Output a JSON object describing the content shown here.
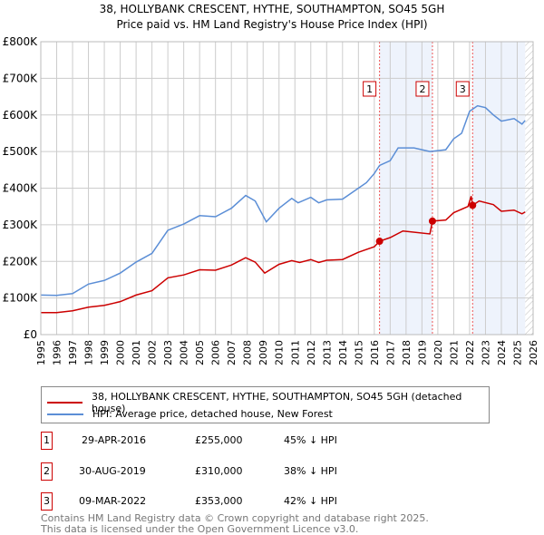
{
  "title": "38, HOLLYBANK CRESCENT, HYTHE, SOUTHAMPTON, SO45 5GH",
  "subtitle": "Price paid vs. HM Land Registry's House Price Index (HPI)",
  "chart_data": {
    "type": "line",
    "title": "38, HOLLYBANK CRESCENT, HYTHE, SOUTHAMPTON, SO45 5GH",
    "subtitle": "Price paid vs. HM Land Registry's House Price Index (HPI)",
    "xlim": [
      1995,
      2026
    ],
    "ylim": [
      0,
      800000
    ],
    "yticks": [
      {
        "v": 0,
        "l": "£0"
      },
      {
        "v": 100000,
        "l": "£100K"
      },
      {
        "v": 200000,
        "l": "£200K"
      },
      {
        "v": 300000,
        "l": "£300K"
      },
      {
        "v": 400000,
        "l": "£400K"
      },
      {
        "v": 500000,
        "l": "£500K"
      },
      {
        "v": 600000,
        "l": "£600K"
      },
      {
        "v": 700000,
        "l": "£700K"
      },
      {
        "v": 800000,
        "l": "£800K"
      }
    ],
    "xticks": [
      "1995",
      "1996",
      "1997",
      "1998",
      "1999",
      "2000",
      "2001",
      "2002",
      "2003",
      "2004",
      "2005",
      "2006",
      "2007",
      "2008",
      "2009",
      "2010",
      "2011",
      "2012",
      "2013",
      "2014",
      "2015",
      "2016",
      "2017",
      "2018",
      "2019",
      "2020",
      "2021",
      "2022",
      "2023",
      "2024",
      "2025",
      "2026"
    ],
    "grid": true,
    "series": [
      {
        "name": "38, HOLLYBANK CRESCENT, HYTHE, SOUTHAMPTON, SO45 5GH (detached house)",
        "color": "#cc0000",
        "points": [
          [
            1995,
            60000
          ],
          [
            1996,
            60000
          ],
          [
            1997,
            65000
          ],
          [
            1998,
            75000
          ],
          [
            1999,
            80000
          ],
          [
            2000,
            90000
          ],
          [
            2001,
            108000
          ],
          [
            2002,
            120000
          ],
          [
            2003,
            155000
          ],
          [
            2004,
            163000
          ],
          [
            2005,
            177000
          ],
          [
            2006,
            176000
          ],
          [
            2007,
            190000
          ],
          [
            2007.9,
            210000
          ],
          [
            2008.5,
            198000
          ],
          [
            2009.1,
            168000
          ],
          [
            2010,
            192000
          ],
          [
            2010.8,
            202000
          ],
          [
            2011.3,
            197000
          ],
          [
            2012,
            205000
          ],
          [
            2012.5,
            197000
          ],
          [
            2013,
            203000
          ],
          [
            2014,
            205000
          ],
          [
            2015,
            225000
          ],
          [
            2016,
            240000
          ],
          [
            2016.33,
            255000
          ],
          [
            2017,
            265000
          ],
          [
            2017.8,
            283000
          ],
          [
            2019.5,
            275000
          ],
          [
            2019.66,
            310000
          ],
          [
            2020.5,
            313000
          ],
          [
            2021,
            333000
          ],
          [
            2021.9,
            350000
          ],
          [
            2022.1,
            378000
          ],
          [
            2022.19,
            353000
          ],
          [
            2022.6,
            365000
          ],
          [
            2023.5,
            355000
          ],
          [
            2024,
            337000
          ],
          [
            2024.8,
            340000
          ],
          [
            2025.3,
            330000
          ],
          [
            2025.5,
            335000
          ]
        ]
      },
      {
        "name": "HPI: Average price, detached house, New Forest",
        "color": "#5b8ed6",
        "points": [
          [
            1995,
            108000
          ],
          [
            1996,
            107000
          ],
          [
            1997,
            112000
          ],
          [
            1998,
            138000
          ],
          [
            1999,
            148000
          ],
          [
            2000,
            168000
          ],
          [
            2001,
            198000
          ],
          [
            2002,
            222000
          ],
          [
            2003,
            285000
          ],
          [
            2004,
            302000
          ],
          [
            2005,
            325000
          ],
          [
            2006,
            322000
          ],
          [
            2007,
            345000
          ],
          [
            2007.9,
            380000
          ],
          [
            2008.5,
            365000
          ],
          [
            2009.2,
            308000
          ],
          [
            2010,
            345000
          ],
          [
            2010.8,
            372000
          ],
          [
            2011.2,
            360000
          ],
          [
            2012,
            375000
          ],
          [
            2012.5,
            360000
          ],
          [
            2013,
            368000
          ],
          [
            2014,
            370000
          ],
          [
            2015,
            400000
          ],
          [
            2015.5,
            415000
          ],
          [
            2016,
            440000
          ],
          [
            2016.33,
            462000
          ],
          [
            2017,
            475000
          ],
          [
            2017.5,
            510000
          ],
          [
            2018.5,
            510000
          ],
          [
            2019.5,
            500000
          ],
          [
            2020.5,
            505000
          ],
          [
            2021,
            535000
          ],
          [
            2021.5,
            550000
          ],
          [
            2022,
            610000
          ],
          [
            2022.5,
            625000
          ],
          [
            2023,
            620000
          ],
          [
            2023.5,
            600000
          ],
          [
            2024,
            583000
          ],
          [
            2024.8,
            590000
          ],
          [
            2025.3,
            575000
          ],
          [
            2025.5,
            585000
          ]
        ]
      }
    ],
    "sales": [
      {
        "n": "1",
        "x": 2016.33,
        "y": 255000
      },
      {
        "n": "2",
        "x": 2019.66,
        "y": 310000
      },
      {
        "n": "3",
        "x": 2022.19,
        "y": 353000
      }
    ],
    "shaded": [
      [
        2016.33,
        2019.66
      ],
      [
        2022.19,
        2025.5
      ]
    ],
    "hatch_from": 2025.5,
    "legend_placement": "bottom"
  },
  "legend": [
    "38, HOLLYBANK CRESCENT, HYTHE, SOUTHAMPTON, SO45 5GH (detached house)",
    "HPI: Average price, detached house, New Forest"
  ],
  "transactions": [
    {
      "n": "1",
      "date": "29-APR-2016",
      "price": "£255,000",
      "hpi": "45% ↓ HPI"
    },
    {
      "n": "2",
      "date": "30-AUG-2019",
      "price": "£310,000",
      "hpi": "38% ↓ HPI"
    },
    {
      "n": "3",
      "date": "09-MAR-2022",
      "price": "£353,000",
      "hpi": "42% ↓ HPI"
    }
  ],
  "footer": [
    "Contains HM Land Registry data © Crown copyright and database right 2025.",
    "This data is licensed under the Open Government Licence v3.0."
  ]
}
